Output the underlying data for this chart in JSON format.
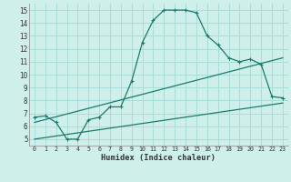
{
  "title": "",
  "xlabel": "Humidex (Indice chaleur)",
  "bg_color": "#cff0ea",
  "line_color": "#1a7a6e",
  "grid_color": "#a8ddd8",
  "xlim": [
    -0.5,
    23.5
  ],
  "ylim": [
    4.5,
    15.5
  ],
  "xticks": [
    0,
    1,
    2,
    3,
    4,
    5,
    6,
    7,
    8,
    9,
    10,
    11,
    12,
    13,
    14,
    15,
    16,
    17,
    18,
    19,
    20,
    21,
    22,
    23
  ],
  "yticks": [
    5,
    6,
    7,
    8,
    9,
    10,
    11,
    12,
    13,
    14,
    15
  ],
  "series1_x": [
    0,
    1,
    2,
    3,
    4,
    5,
    6,
    7,
    8,
    9,
    10,
    11,
    12,
    13,
    14,
    15,
    16,
    17,
    18,
    19,
    20,
    21,
    22,
    23
  ],
  "series1_y": [
    6.7,
    6.8,
    6.3,
    5.0,
    5.0,
    6.5,
    6.7,
    7.5,
    7.5,
    9.5,
    12.5,
    14.2,
    15.0,
    15.0,
    15.0,
    14.8,
    13.0,
    12.3,
    11.3,
    11.0,
    11.2,
    10.8,
    8.3,
    8.2
  ],
  "series2_x": [
    0,
    23
  ],
  "series2_y": [
    5.0,
    7.8
  ],
  "series3_x": [
    0,
    23
  ],
  "series3_y": [
    6.3,
    11.3
  ]
}
